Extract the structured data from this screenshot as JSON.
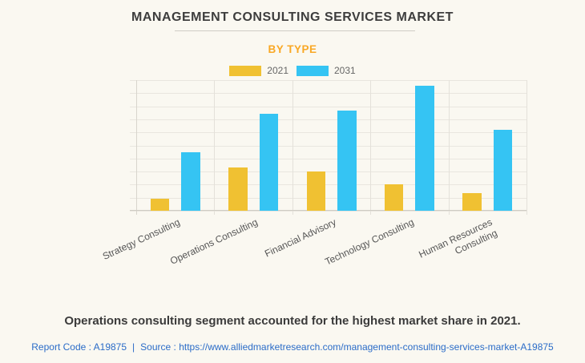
{
  "header": {
    "title": "MANAGEMENT CONSULTING SERVICES MARKET",
    "subtitle": "BY TYPE"
  },
  "chart_data": {
    "type": "bar",
    "categories": [
      "Strategy Consulting",
      "Operations Consulting",
      "Financial Advisory",
      "Technology Consulting",
      "Human Resources\nConsulting"
    ],
    "series": [
      {
        "name": "2021",
        "color": "#f0c132",
        "values": [
          0.9,
          3.3,
          3.0,
          2.0,
          1.35
        ]
      },
      {
        "name": "2031",
        "color": "#35c4f3",
        "values": [
          4.5,
          7.4,
          7.65,
          9.55,
          6.2
        ]
      }
    ],
    "title": "MANAGEMENT CONSULTING SERVICES MARKET",
    "subtitle": "BY TYPE",
    "xlabel": "",
    "ylabel": "",
    "ylim": [
      0,
      10
    ],
    "value_scale": "relative gridline units (no numeric y-axis labels shown)",
    "grid": true,
    "gridline_rows": 10,
    "legend_position": "top-center",
    "y_axis_labels_visible": false
  },
  "footer": {
    "statement": "Operations consulting segment accounted for the highest market share in 2021.",
    "report_code": "Report Code : A19875",
    "separator": "|",
    "source_prefix": "Source :",
    "source_url": "https://www.alliedmarketresearch.com/management-consulting-services-market-A19875"
  },
  "colors": {
    "background": "#faf8f1",
    "title_text": "#3d3d3d",
    "subtitle_accent": "#f9a825",
    "series_2021": "#f0c132",
    "series_2031": "#35c4f3",
    "gridline": "#e9e6df",
    "axis_line": "#cfccc4",
    "axis_label_text": "#555555",
    "statement_text": "#3b3b3b",
    "link_text": "#2b6cc8"
  }
}
